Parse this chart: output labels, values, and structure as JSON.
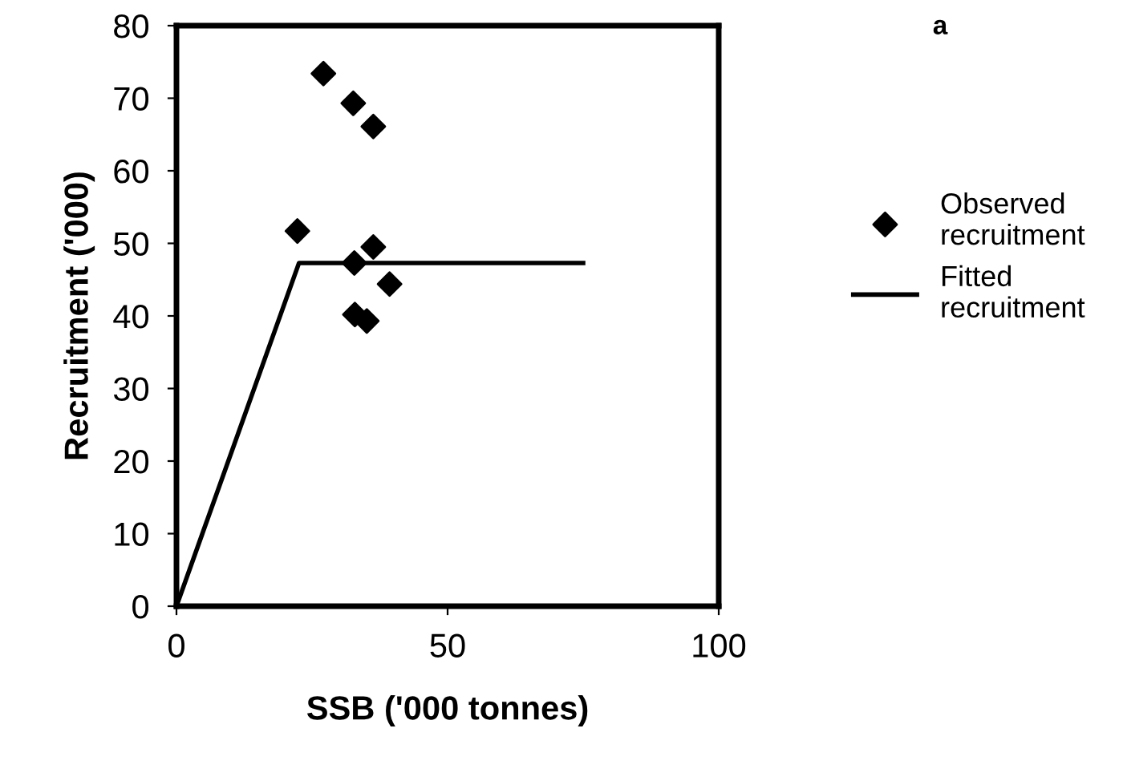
{
  "chart_data": {
    "type": "scatter",
    "xlabel": "SSB ('000 tonnes)",
    "ylabel": "Recruitment ('000)",
    "annotations": [
      "a"
    ],
    "xlim": [
      0,
      100
    ],
    "xticks": [
      0,
      50,
      100
    ],
    "ylim": [
      0,
      80
    ],
    "yticks": [
      0,
      10,
      20,
      30,
      40,
      50,
      60,
      70,
      80
    ],
    "grid": false,
    "legend": "right",
    "marker": "diamond",
    "series": [
      {
        "name": "Observed recruitment",
        "color": "#000000",
        "x": [
          27.1,
          32.6,
          36.3,
          22.3,
          36.3,
          32.8,
          39.3,
          32.9,
          35.1
        ],
        "values": [
          73.4,
          69.3,
          66.1,
          51.7,
          49.5,
          47.3,
          44.4,
          40.2,
          39.3
        ]
      },
      {
        "name": "Fitted recruitment",
        "type": "line",
        "marker": "none",
        "line_style": "solid",
        "color": "#000000",
        "x": [
          0,
          22.6,
          75
        ],
        "values": [
          0,
          47.3,
          47.3
        ]
      }
    ]
  }
}
